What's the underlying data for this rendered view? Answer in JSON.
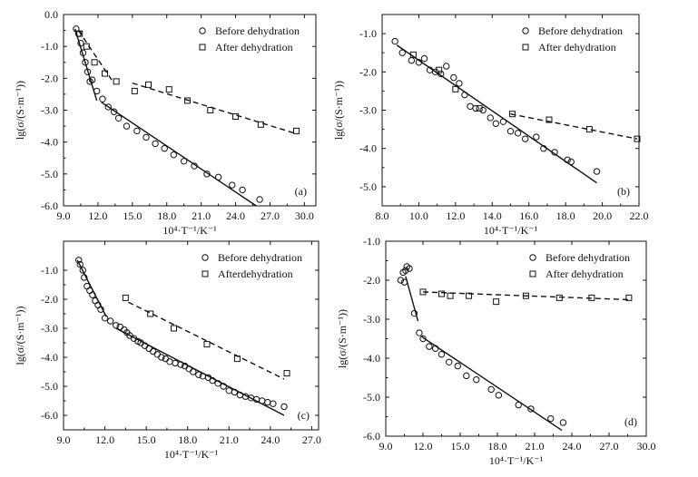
{
  "figure": {
    "marker_legend": [
      "Before dehydration",
      "After dehydration"
    ]
  },
  "chart_data": [
    {
      "type": "scatter",
      "panel_label": "(a)",
      "xlabel": "10⁴·T⁻¹/K⁻¹",
      "ylabel": "lg(σ/(S·m⁻¹))",
      "xlim": [
        9.0,
        31.0
      ],
      "ylim": [
        -6.0,
        0.0
      ],
      "xticks": [
        9.0,
        12.0,
        15.0,
        18.0,
        21.0,
        24.0,
        27.0,
        30.0
      ],
      "yticks": [
        0.0,
        -1.0,
        -2.0,
        -3.0,
        -4.0,
        -5.0,
        -6.0
      ],
      "tick_decimals": 1,
      "legend": {
        "position": "top-right",
        "entries": [
          "Before dehydration",
          "After dehydration"
        ]
      },
      "series": [
        {
          "name": "Before dehydration",
          "marker": "circle",
          "x": [
            10.1,
            10.3,
            10.5,
            10.7,
            10.9,
            11.1,
            11.3,
            11.5,
            11.9,
            12.4,
            12.9,
            13.4,
            13.8,
            14.5,
            15.4,
            16.2,
            17.0,
            17.8,
            18.6,
            19.5,
            20.4,
            21.5,
            22.5,
            23.7,
            24.6,
            26.1
          ],
          "y": [
            -0.45,
            -0.6,
            -0.9,
            -1.2,
            -1.5,
            -1.8,
            -2.1,
            -2.05,
            -2.4,
            -2.65,
            -2.9,
            -3.05,
            -3.25,
            -3.5,
            -3.65,
            -3.85,
            -4.05,
            -4.2,
            -4.4,
            -4.6,
            -4.75,
            -5.0,
            -5.1,
            -5.35,
            -5.5,
            -5.8
          ]
        },
        {
          "name": "After dehydration",
          "marker": "square",
          "x": [
            10.4,
            11.0,
            11.7,
            12.6,
            13.6,
            15.2,
            16.4,
            18.2,
            19.8,
            21.8,
            24.0,
            26.2,
            29.3
          ],
          "y": [
            -0.6,
            -1.0,
            -1.5,
            -1.85,
            -2.1,
            -2.4,
            -2.2,
            -2.35,
            -2.7,
            -3.0,
            -3.2,
            -3.45,
            -3.65
          ]
        }
      ],
      "fit_lines": [
        {
          "series": "Before dehydration",
          "style": "solid",
          "x": [
            10.0,
            11.9
          ],
          "y": [
            -0.45,
            -2.7
          ]
        },
        {
          "series": "Before dehydration",
          "style": "solid",
          "x": [
            12.3,
            25.8
          ],
          "y": [
            -2.75,
            -6.0
          ]
        },
        {
          "series": "After dehydration",
          "style": "dashed",
          "x": [
            10.3,
            13.2
          ],
          "y": [
            -0.5,
            -2.05
          ]
        },
        {
          "series": "After dehydration",
          "style": "dashed",
          "x": [
            15.0,
            29.4
          ],
          "y": [
            -2.15,
            -3.75
          ]
        }
      ]
    },
    {
      "type": "scatter",
      "panel_label": "(b)",
      "xlabel": "10⁴·T⁻¹/K⁻¹",
      "ylabel": "lg(σ/(S·m⁻¹))",
      "xlim": [
        8.0,
        22.0
      ],
      "ylim": [
        -5.5,
        -0.5
      ],
      "xticks": [
        8.0,
        10.0,
        12.0,
        14.0,
        16.0,
        18.0,
        20.0,
        22.0
      ],
      "yticks": [
        -1.0,
        -2.0,
        -3.0,
        -4.0,
        -5.0
      ],
      "tick_decimals": 1,
      "legend": {
        "position": "top-right",
        "entries": [
          "Before dehydration",
          "After dehydration"
        ]
      },
      "series": [
        {
          "name": "Before dehydration",
          "marker": "circle",
          "x": [
            8.7,
            9.1,
            9.6,
            10.0,
            10.3,
            10.6,
            10.9,
            11.2,
            11.5,
            11.9,
            12.2,
            12.5,
            12.8,
            13.1,
            13.5,
            13.9,
            14.2,
            14.6,
            15.0,
            15.4,
            15.8,
            16.4,
            16.8,
            17.4,
            18.1,
            18.3,
            19.7
          ],
          "y": [
            -1.2,
            -1.5,
            -1.7,
            -1.75,
            -1.65,
            -1.95,
            -2.0,
            -2.05,
            -1.85,
            -2.15,
            -2.3,
            -2.6,
            -2.9,
            -2.95,
            -3.0,
            -3.2,
            -3.35,
            -3.3,
            -3.55,
            -3.6,
            -3.75,
            -3.7,
            -4.0,
            -4.1,
            -4.3,
            -4.35,
            -4.6
          ]
        },
        {
          "name": "After dehydration",
          "marker": "square",
          "x": [
            9.7,
            11.1,
            12.0,
            13.3,
            15.1,
            17.1,
            19.3,
            21.9
          ],
          "y": [
            -1.55,
            -1.95,
            -2.45,
            -2.95,
            -3.1,
            -3.25,
            -3.5,
            -3.75
          ]
        }
      ],
      "fit_lines": [
        {
          "series": "Before dehydration",
          "style": "solid",
          "x": [
            8.8,
            19.7
          ],
          "y": [
            -1.3,
            -4.9
          ]
        },
        {
          "series": "After dehydration",
          "style": "dashed",
          "x": [
            15.0,
            21.9
          ],
          "y": [
            -3.1,
            -3.75
          ]
        }
      ]
    },
    {
      "type": "scatter",
      "panel_label": "(c)",
      "xlabel": "10⁴·T⁻¹/K⁻¹",
      "ylabel": "lg(σ/(S·m⁻¹))",
      "xlim": [
        9.0,
        27.5
      ],
      "ylim": [
        -6.5,
        0.0
      ],
      "xticks": [
        9.0,
        12.0,
        15.0,
        18.0,
        21.0,
        24.0,
        27.0
      ],
      "yticks": [
        -1.0,
        -2.0,
        -3.0,
        -4.0,
        -5.0,
        -6.0
      ],
      "tick_decimals": 1,
      "legend": {
        "position": "top-right",
        "entries": [
          "Before dehydration",
          "Afterdehydration"
        ]
      },
      "series": [
        {
          "name": "Before dehydration",
          "marker": "circle",
          "x": [
            10.1,
            10.2,
            10.4,
            10.5,
            10.7,
            10.9,
            11.1,
            11.3,
            11.5,
            11.7,
            12.0,
            12.4,
            12.8,
            13.1,
            13.4,
            13.6,
            13.8,
            14.1,
            14.4,
            14.6,
            14.9,
            15.2,
            15.5,
            15.8,
            16.1,
            16.4,
            16.7,
            17.1,
            17.5,
            17.8,
            18.1,
            18.4,
            18.8,
            19.1,
            19.5,
            19.8,
            20.2,
            20.6,
            21.0,
            21.4,
            21.8,
            22.2,
            22.6,
            23.0,
            23.4,
            23.8,
            24.2,
            25.0
          ],
          "y": [
            -0.65,
            -0.8,
            -1.0,
            -1.25,
            -1.55,
            -1.7,
            -1.85,
            -2.05,
            -2.2,
            -2.35,
            -2.65,
            -2.75,
            -2.9,
            -2.95,
            -3.05,
            -3.15,
            -3.25,
            -3.35,
            -3.45,
            -3.5,
            -3.6,
            -3.7,
            -3.8,
            -3.9,
            -4.0,
            -4.05,
            -4.15,
            -4.2,
            -4.25,
            -4.3,
            -4.4,
            -4.5,
            -4.6,
            -4.65,
            -4.7,
            -4.8,
            -4.9,
            -5.0,
            -5.15,
            -5.2,
            -5.3,
            -5.35,
            -5.4,
            -5.45,
            -5.5,
            -5.55,
            -5.6,
            -5.7
          ]
        },
        {
          "name": "Afterdehydration",
          "marker": "square",
          "x": [
            13.5,
            15.3,
            17.0,
            19.4,
            21.6,
            25.2
          ],
          "y": [
            -1.95,
            -2.5,
            -3.0,
            -3.55,
            -4.05,
            -4.55
          ]
        }
      ],
      "fit_lines": [
        {
          "series": "Before dehydration",
          "style": "solid",
          "x": [
            10.0,
            12.1
          ],
          "y": [
            -0.65,
            -2.6
          ]
        },
        {
          "series": "Before dehydration",
          "style": "solid",
          "x": [
            12.8,
            25.0
          ],
          "y": [
            -3.0,
            -6.0
          ]
        },
        {
          "series": "Afterdehydration",
          "style": "dashed",
          "x": [
            13.7,
            25.0
          ],
          "y": [
            -2.1,
            -4.75
          ]
        }
      ]
    },
    {
      "type": "scatter",
      "panel_label": "(d)",
      "xlabel": "10⁴·T⁻¹/K⁻¹",
      "ylabel": "lg(σ/(S·m⁻¹))",
      "xlim": [
        9.0,
        30.0
      ],
      "ylim": [
        -6.0,
        -1.0
      ],
      "xticks": [
        9.0,
        12.0,
        15.0,
        18.0,
        21.0,
        24.0,
        27.0,
        30.0
      ],
      "yticks": [
        -1.0,
        -2.0,
        -3.0,
        -4.0,
        -5.0,
        -6.0
      ],
      "tick_decimals": 1,
      "legend": {
        "position": "top-right",
        "entries": [
          "Before dehydration",
          "After dehydration"
        ]
      },
      "series": [
        {
          "name": "Before dehydration",
          "marker": "circle",
          "x": [
            10.2,
            10.4,
            10.5,
            10.6,
            10.7,
            10.9,
            11.3,
            11.7,
            12.0,
            12.5,
            13.0,
            13.5,
            14.1,
            14.8,
            15.5,
            16.3,
            17.5,
            18.1,
            19.7,
            20.7,
            22.3,
            23.3
          ],
          "y": [
            -2.0,
            -1.8,
            -2.05,
            -1.75,
            -1.65,
            -1.7,
            -2.85,
            -3.35,
            -3.5,
            -3.7,
            -3.75,
            -3.9,
            -4.1,
            -4.2,
            -4.45,
            -4.55,
            -4.8,
            -4.95,
            -5.2,
            -5.3,
            -5.55,
            -5.65
          ]
        },
        {
          "name": "After dehydration",
          "marker": "square",
          "x": [
            12.0,
            13.5,
            14.2,
            15.7,
            17.9,
            20.3,
            23.0,
            25.6,
            28.6
          ],
          "y": [
            -2.3,
            -2.35,
            -2.4,
            -2.4,
            -2.55,
            -2.4,
            -2.45,
            -2.45,
            -2.45
          ]
        }
      ],
      "fit_lines": [
        {
          "series": "Before dehydration",
          "style": "solid",
          "x": [
            10.6,
            11.6
          ],
          "y": [
            -1.9,
            -3.05
          ]
        },
        {
          "series": "Before dehydration",
          "style": "solid",
          "x": [
            11.9,
            23.2
          ],
          "y": [
            -3.45,
            -5.85
          ]
        },
        {
          "series": "After dehydration",
          "style": "dashed",
          "x": [
            12.0,
            28.6
          ],
          "y": [
            -2.3,
            -2.5
          ]
        }
      ]
    }
  ]
}
